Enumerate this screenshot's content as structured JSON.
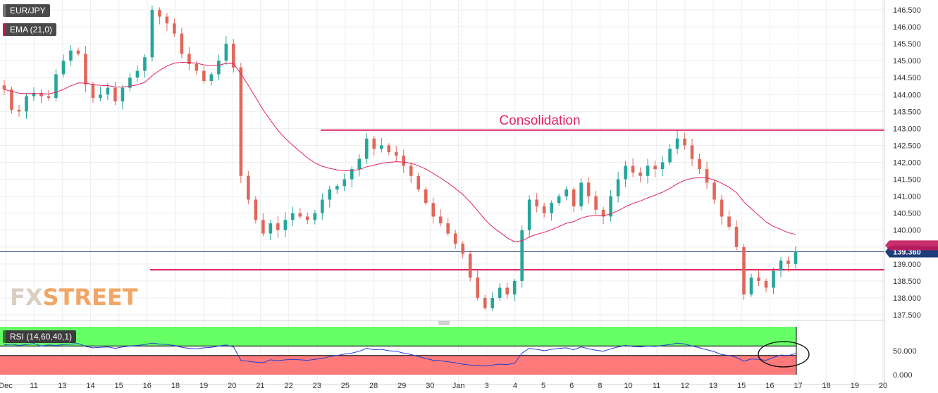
{
  "symbol": "EUR/JPY",
  "indicator_label": "EMA (21,0)",
  "rsi_label": "RSI (14,60,40,1)",
  "watermark": {
    "fx": "FX",
    "street": "STREET"
  },
  "colors": {
    "up": "#26a69a",
    "down": "#e0675a",
    "ema": "#e0245e",
    "level": "#e0245e",
    "price_line": "#1f3c7a",
    "rsi_line": "#1f3fd6",
    "rsi_green": "#66ff66",
    "rsi_red": "#ff7a7a",
    "ema_tag": "#c2185b",
    "rsi_tag": "#2e7d32"
  },
  "chart_data": [
    {
      "type": "candlestick",
      "title": "EUR/JPY",
      "y_ticks": [
        "146.500",
        "146.000",
        "145.500",
        "145.000",
        "144.500",
        "144.000",
        "143.500",
        "143.000",
        "142.500",
        "142.000",
        "141.500",
        "141.000",
        "140.500",
        "140.000",
        "139.500",
        "139.000",
        "138.500",
        "138.000",
        "137.500"
      ],
      "ylim": [
        137.3,
        146.8
      ],
      "x_ticks": [
        "Dec",
        "11",
        "13",
        "14",
        "15",
        "16",
        "18",
        "19",
        "20",
        "21",
        "22",
        "23",
        "25",
        "28",
        "29",
        "30",
        "Jan",
        "3",
        "4",
        "5",
        "6",
        "8",
        "10",
        "11",
        "12",
        "13",
        "15",
        "16",
        "17",
        "18",
        "19",
        "20"
      ],
      "last_price": "139.360",
      "annotation": "Consolidation",
      "resistance_level": 142.95,
      "support_level": 138.83,
      "ema_last": 139.55,
      "closes": [
        144.15,
        143.55,
        143.5,
        143.95,
        144.05,
        143.95,
        143.9,
        144.6,
        145.0,
        145.3,
        145.2,
        144.3,
        143.9,
        144.0,
        144.2,
        143.8,
        144.2,
        144.5,
        144.7,
        145.1,
        146.5,
        146.3,
        146.1,
        145.8,
        145.2,
        144.9,
        144.7,
        144.4,
        144.6,
        145.0,
        145.5,
        144.8,
        141.6,
        140.9,
        140.3,
        139.9,
        140.2,
        140.0,
        140.3,
        140.5,
        140.4,
        140.3,
        140.5,
        140.9,
        141.2,
        141.3,
        141.5,
        141.8,
        142.1,
        142.7,
        142.4,
        142.5,
        142.3,
        142.2,
        141.9,
        141.6,
        141.2,
        140.8,
        140.4,
        140.2,
        139.9,
        139.6,
        139.3,
        138.6,
        138.0,
        137.7,
        138.0,
        138.3,
        138.1,
        138.5,
        140.0,
        140.9,
        140.7,
        140.5,
        140.8,
        141.0,
        141.2,
        140.7,
        141.4,
        141.0,
        140.6,
        140.4,
        141.0,
        141.5,
        141.9,
        141.7,
        141.6,
        141.9,
        141.8,
        142.0,
        142.4,
        142.7,
        142.5,
        142.1,
        141.8,
        141.4,
        140.9,
        140.4,
        140.1,
        139.5,
        138.1,
        138.6,
        138.5,
        138.3,
        138.8,
        139.1,
        139.0,
        139.36
      ],
      "rsi_ylim": [
        0,
        100
      ],
      "rsi_ticks": [
        "50.000",
        "0.000"
      ],
      "rsi_levels": [
        40,
        60
      ],
      "rsi": [
        62,
        64,
        61,
        63,
        65,
        60,
        62,
        61,
        63,
        64,
        65,
        59,
        56,
        57,
        58,
        55,
        58,
        60,
        61,
        63,
        66,
        64,
        63,
        61,
        57,
        55,
        54,
        56,
        57,
        60,
        62,
        58,
        30,
        28,
        26,
        25,
        31,
        29,
        31,
        32,
        31,
        30,
        32,
        34,
        38,
        40,
        43,
        45,
        49,
        55,
        52,
        53,
        50,
        49,
        45,
        42,
        38,
        34,
        30,
        29,
        27,
        25,
        22,
        20,
        19,
        18,
        20,
        22,
        21,
        24,
        45,
        55,
        53,
        50,
        53,
        55,
        56,
        52,
        58,
        54,
        51,
        49,
        54,
        58,
        61,
        59,
        58,
        60,
        59,
        61,
        63,
        66,
        64,
        60,
        56,
        52,
        48,
        42,
        40,
        36,
        28,
        33,
        32,
        30,
        36,
        41,
        40,
        44
      ]
    }
  ]
}
